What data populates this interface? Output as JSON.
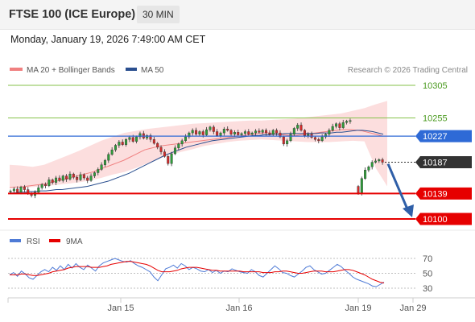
{
  "header": {
    "title": "FTSE 100 (ICE Europe)",
    "interval": "30 MIN"
  },
  "datetime": "Monday, January 19, 2026 7:49:00 AM CET",
  "legend": {
    "main": [
      {
        "label": "MA 20 + Bollinger Bands",
        "color": "#f08080"
      },
      {
        "label": "MA 50",
        "color": "#2a4f8f"
      }
    ],
    "research": "Research © 2026 Trading Central",
    "rsi": [
      {
        "label": "RSI",
        "color": "#4f7bd6"
      },
      {
        "label": "9MA",
        "color": "#e60000"
      }
    ]
  },
  "chart_data": {
    "type": "candlestick",
    "price_axis": {
      "min": 10085,
      "max": 10320
    },
    "levels": [
      {
        "value": 10305,
        "label": "10305",
        "color": "#86c24a",
        "kind": "resistance"
      },
      {
        "value": 10255,
        "label": "10255",
        "color": "#86c24a",
        "kind": "resistance"
      },
      {
        "value": 10227,
        "label": "10227",
        "color": "#2e6ad6",
        "kind": "pivot"
      },
      {
        "value": 10187,
        "label": "10187",
        "color": "#333333",
        "kind": "last"
      },
      {
        "value": 10139,
        "label": "10139",
        "color": "#e60000",
        "kind": "support"
      },
      {
        "value": 10100,
        "label": "10100",
        "color": "#e60000",
        "kind": "support"
      }
    ],
    "x_ticks": [
      "Jan 15",
      "Jan 16",
      "Jan 19",
      "Jan 29"
    ],
    "forecast": {
      "from": 10187,
      "to": 10100,
      "direction": "down"
    },
    "closes": [
      10143,
      10146,
      10141,
      10149,
      10145,
      10139,
      10136,
      10141,
      10148,
      10153,
      10151,
      10160,
      10156,
      10163,
      10159,
      10166,
      10161,
      10169,
      10164,
      10160,
      10168,
      10163,
      10159,
      10166,
      10171,
      10176,
      10183,
      10190,
      10199,
      10206,
      10213,
      10218,
      10214,
      10222,
      10225,
      10219,
      10226,
      10231,
      10224,
      10228,
      10222,
      10216,
      10210,
      10203,
      10196,
      10185,
      10200,
      10209,
      10215,
      10220,
      10226,
      10232,
      10236,
      10230,
      10234,
      10229,
      10237,
      10241,
      10234,
      10228,
      10232,
      10238,
      10236,
      10230,
      10233,
      10229,
      10231,
      10234,
      10230,
      10232,
      10235,
      10233,
      10236,
      10232,
      10230,
      10236,
      10232,
      10226,
      10215,
      10220,
      10230,
      10239,
      10244,
      10236,
      10228,
      10230,
      10225,
      10222,
      10220,
      10226,
      10230,
      10236,
      10242,
      10246,
      10240,
      10248,
      10250,
      10251
    ],
    "closes_jan19": [
      10140,
      10162,
      10175,
      10180,
      10187,
      10189,
      10191,
      10187
    ],
    "ma20": [
      10148,
      10149,
      10149,
      10150,
      10151,
      10152,
      10153,
      10154,
      10156,
      10158,
      10160,
      10162,
      10164,
      10166,
      10168,
      10170,
      10172,
      10175,
      10178,
      10181,
      10184,
      10187,
      10190,
      10194,
      10198,
      10202,
      10206,
      10208,
      10210,
      10212,
      10213,
      10214,
      10215,
      10216,
      10217,
      10218,
      10219,
      10220,
      10221,
      10222,
      10223,
      10224,
      10225,
      10226,
      10227,
      10228,
      10229,
      10230,
      10231,
      10232,
      10232,
      10231,
      10230,
      10229,
      10228,
      10228,
      10229,
      10230,
      10231,
      10232,
      10233,
      10234,
      10235,
      10236,
      10237,
      10237,
      10237,
      10236,
      10235,
      10233,
      10231,
      10229,
      10227
    ],
    "ma50": [
      10140,
      10140,
      10141,
      10141,
      10142,
      10142,
      10143,
      10143,
      10144,
      10145,
      10145,
      10146,
      10147,
      10148,
      10149,
      10150,
      10152,
      10154,
      10156,
      10158,
      10161,
      10164,
      10167,
      10170,
      10174,
      10178,
      10182,
      10186,
      10190,
      10194,
      10198,
      10201,
      10204,
      10207,
      10210,
      10212,
      10214,
      10216,
      10218,
      10220,
      10221,
      10222,
      10223,
      10224,
      10225,
      10226,
      10227,
      10228,
      10228,
      10229,
      10229,
      10230,
      10230,
      10231,
      10231,
      10231,
      10231,
      10231,
      10231,
      10231,
      10232,
      10232,
      10232,
      10233,
      10233,
      10234,
      10235,
      10236,
      10236,
      10235,
      10234,
      10232,
      10230
    ],
    "bollinger_upper": [
      10183,
      10182,
      10180,
      10183,
      10190,
      10197,
      10204,
      10212,
      10220,
      10226,
      10232,
      10235,
      10238,
      10240,
      10242,
      10244,
      10246,
      10247,
      10248,
      10249,
      10250,
      10251,
      10251,
      10252,
      10253,
      10254,
      10256,
      10258,
      10260,
      10262,
      10266,
      10270,
      10276,
      10281
    ],
    "bollinger_lower": [
      10148,
      10148,
      10149,
      10150,
      10152,
      10154,
      10156,
      10159,
      10163,
      10168,
      10172,
      10178,
      10185,
      10192,
      10198,
      10203,
      10207,
      10212,
      10215,
      10218,
      10220,
      10221,
      10222,
      10221,
      10220,
      10219,
      10218,
      10218,
      10218,
      10219,
      10220,
      10219,
      10178,
      10150
    ],
    "rsi": {
      "ticks": [
        70,
        50,
        30
      ],
      "rsi": [
        48,
        51,
        46,
        53,
        49,
        44,
        42,
        47,
        52,
        55,
        52,
        58,
        54,
        60,
        55,
        62,
        57,
        63,
        58,
        55,
        61,
        57,
        53,
        60,
        64,
        66,
        68,
        70,
        68,
        66,
        65,
        67,
        63,
        60,
        58,
        55,
        52,
        45,
        40,
        48,
        56,
        58,
        61,
        57,
        63,
        60,
        55,
        58,
        56,
        53,
        52,
        55,
        51,
        54,
        50,
        53,
        52,
        56,
        54,
        52,
        51,
        50,
        55,
        52,
        47,
        45,
        50,
        55,
        60,
        56,
        51,
        50,
        47,
        45,
        49,
        53,
        58,
        60,
        55,
        52,
        49,
        50,
        54,
        58,
        62,
        59,
        54,
        50,
        45,
        42,
        40,
        38,
        36,
        33,
        32,
        35,
        38
      ],
      "ma9": [
        48,
        48,
        48,
        49,
        49,
        48,
        47,
        47,
        48,
        49,
        50,
        52,
        53,
        54,
        55,
        57,
        58,
        59,
        59,
        59,
        59,
        58,
        58,
        58,
        59,
        60,
        62,
        63,
        64,
        65,
        66,
        66,
        65,
        64,
        63,
        62,
        60,
        57,
        54,
        52,
        52,
        52,
        53,
        54,
        56,
        57,
        58,
        58,
        58,
        57,
        56,
        55,
        54,
        54,
        53,
        53,
        53,
        53,
        53,
        53,
        52,
        52,
        52,
        52,
        52,
        51,
        51,
        51,
        52,
        52,
        53,
        53,
        52,
        51,
        50,
        50,
        51,
        52,
        53,
        53,
        53,
        52,
        52,
        52,
        53,
        54,
        55,
        55,
        54,
        52,
        50,
        48,
        45,
        42,
        40,
        38,
        37
      ]
    }
  }
}
